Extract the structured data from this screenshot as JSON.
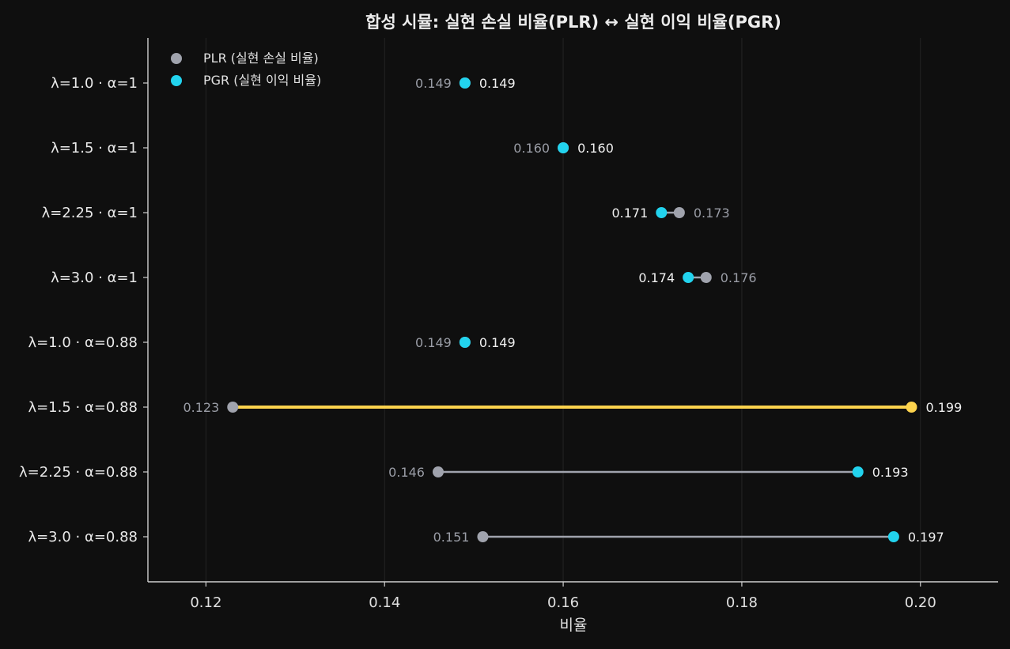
{
  "chart_data": {
    "type": "dumbbell",
    "title": "합성 시뮬: 실현 손실 비율(PLR) ↔ 실현 이익 비율(PGR)",
    "xlabel": "비율",
    "ylabel": "",
    "xlim": [
      0.1135,
      0.2087
    ],
    "x_ticks": [
      "0.12",
      "0.14",
      "0.16",
      "0.18",
      "0.20"
    ],
    "x_tick_values": [
      0.12,
      0.14,
      0.16,
      0.18,
      0.2
    ],
    "grid": "vertical",
    "legend_position": "top-left",
    "categories": [
      "λ=1.0 · α=1",
      "λ=1.5 · α=1",
      "λ=2.25 · α=1",
      "λ=3.0 · α=1",
      "λ=1.0 · α=0.88",
      "λ=1.5 · α=0.88",
      "λ=2.25 · α=0.88",
      "λ=3.0 · α=0.88"
    ],
    "series": [
      {
        "name": "PLR (실현 손실 비율)",
        "color": "#a0a3ad",
        "values": [
          0.149,
          0.16,
          0.173,
          0.176,
          0.149,
          0.123,
          0.146,
          0.151
        ],
        "labels": [
          "0.149",
          "0.160",
          "0.173",
          "0.176",
          "0.149",
          "0.123",
          "0.146",
          "0.151"
        ]
      },
      {
        "name": "PGR (실현 이익 비율)",
        "color": "#22d3ee",
        "values": [
          0.149,
          0.16,
          0.171,
          0.174,
          0.149,
          0.199,
          0.193,
          0.197
        ],
        "labels": [
          "0.149",
          "0.160",
          "0.171",
          "0.174",
          "0.149",
          "0.199",
          "0.193",
          "0.197"
        ]
      }
    ],
    "highlight_index": 5,
    "highlight_color": "#fcd34d",
    "connector_color": "#a0a3ad"
  }
}
